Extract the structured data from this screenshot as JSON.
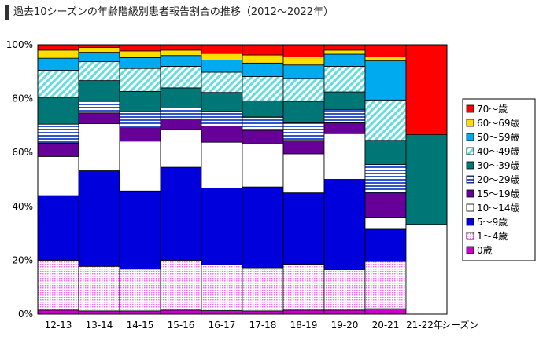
{
  "title": "過去10シーズンの年齢階級別患者報告割合の推移（2012〜2022年）",
  "chart_data": {
    "type": "bar",
    "stacked": true,
    "percent": true,
    "xlabel": "シーズン",
    "ylabel": "",
    "ylim": [
      0,
      100
    ],
    "yticks": [
      "0%",
      "20%",
      "40%",
      "60%",
      "80%",
      "100%"
    ],
    "grid": "horizontal dashed",
    "legend_position": "right",
    "categories": [
      "12-13",
      "13-14",
      "14-15",
      "15-16",
      "16-17",
      "17-18",
      "18-19",
      "19-20",
      "20-21",
      "21-22年"
    ],
    "series": [
      {
        "name": "0歳",
        "color": "#cc00cc",
        "pattern": "solid",
        "values": [
          1.5,
          1.2,
          1.2,
          1.5,
          1.3,
          1.2,
          1.5,
          1.5,
          2.0,
          0
        ]
      },
      {
        "name": "1～4歳",
        "color": "#ff99ff",
        "pattern": "dots",
        "values": [
          18.5,
          16.5,
          15.5,
          18.5,
          17.0,
          16.0,
          17.0,
          15.0,
          17.5,
          0
        ]
      },
      {
        "name": "5～9歳",
        "color": "#0000dd",
        "pattern": "solid",
        "values": [
          24.0,
          35.5,
          29.0,
          34.5,
          28.5,
          30.0,
          26.5,
          33.5,
          12.0,
          0
        ]
      },
      {
        "name": "10～14歳",
        "color": "#ffffff",
        "pattern": "solid",
        "values": [
          14.5,
          17.5,
          18.5,
          14.0,
          17.0,
          16.0,
          14.5,
          17.0,
          4.5,
          33.3
        ]
      },
      {
        "name": "15～19歳",
        "color": "#660099",
        "pattern": "solid",
        "values": [
          5.0,
          4.0,
          5.0,
          4.0,
          6.0,
          5.0,
          5.0,
          4.0,
          9.0,
          0
        ]
      },
      {
        "name": "20～29歳",
        "color": "#3355cc",
        "pattern": "hstripes",
        "values": [
          7.0,
          4.5,
          6.0,
          4.0,
          5.5,
          5.0,
          6.5,
          5.0,
          10.5,
          0
        ]
      },
      {
        "name": "30～39歳",
        "color": "#007777",
        "pattern": "solid",
        "values": [
          10.0,
          7.5,
          7.5,
          7.5,
          7.0,
          6.0,
          8.0,
          6.5,
          9.0,
          33.3
        ]
      },
      {
        "name": "40～49歳",
        "color": "#66dddd",
        "pattern": "dstripes",
        "values": [
          10.0,
          7.0,
          8.5,
          8.0,
          7.5,
          9.0,
          8.5,
          9.5,
          15.0,
          0
        ]
      },
      {
        "name": "50～59歳",
        "color": "#00aaee",
        "pattern": "solid",
        "values": [
          4.5,
          3.5,
          4.0,
          4.0,
          4.5,
          5.0,
          5.0,
          4.5,
          14.5,
          0
        ]
      },
      {
        "name": "60～69歳",
        "color": "#ffdd00",
        "pattern": "solid",
        "values": [
          3.0,
          1.8,
          2.5,
          2.0,
          2.5,
          3.0,
          3.0,
          1.5,
          1.5,
          0
        ]
      },
      {
        "name": "70～歳",
        "color": "#ff0000",
        "pattern": "solid",
        "values": [
          2.0,
          1.0,
          2.3,
          2.0,
          3.2,
          3.8,
          4.5,
          2.0,
          4.5,
          33.4
        ]
      }
    ]
  }
}
